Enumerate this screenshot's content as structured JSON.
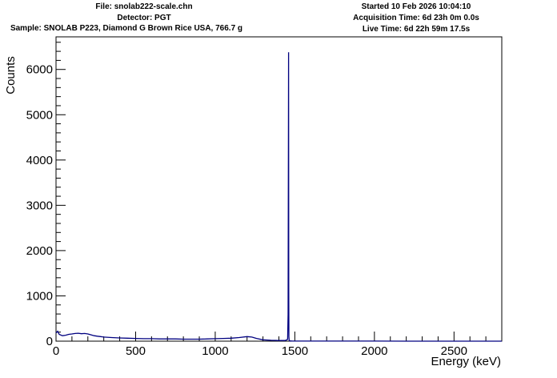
{
  "header": {
    "file": "File: snolab222-scale.chn",
    "detector": "Detector: PGT",
    "sample": "Sample: SNOLAB P223, Diamond G Brown Rice USA, 766.7 g",
    "started": "Started 10 Feb 2026 10:04:10",
    "acquisition_time": "Acquisition Time: 6d 23h 0m 0.0s",
    "live_time": "Live Time: 6d 22h 59m 17.5s"
  },
  "chart_data": {
    "type": "line",
    "title": "",
    "xlabel": "Energy (keV)",
    "ylabel": "Counts",
    "xlim": [
      0,
      2800
    ],
    "ylim": [
      0,
      6720
    ],
    "x_ticks": [
      0,
      500,
      1000,
      1500,
      2000,
      2500
    ],
    "y_ticks": [
      0,
      1000,
      2000,
      3000,
      4000,
      5000,
      6000
    ],
    "grid": false,
    "line_color": "#000080",
    "series": [
      {
        "x": [
          0,
          10,
          20,
          40,
          60,
          80,
          100,
          120,
          140,
          160,
          180,
          200,
          220,
          240,
          260,
          280,
          300,
          350,
          400,
          450,
          500,
          550,
          600,
          650,
          700,
          750,
          800,
          850,
          900,
          950,
          1000,
          1050,
          1100,
          1150,
          1200,
          1230,
          1260,
          1300,
          1350,
          1400,
          1440,
          1455,
          1458,
          1460,
          1461,
          1462,
          1463,
          1465,
          1470,
          1480,
          1500,
          1600,
          1700,
          1800,
          2000,
          2200,
          2400,
          2600,
          2800
        ],
        "y": [
          180,
          220,
          150,
          120,
          130,
          150,
          160,
          170,
          175,
          165,
          170,
          160,
          140,
          120,
          110,
          100,
          90,
          80,
          70,
          65,
          60,
          55,
          55,
          50,
          50,
          50,
          45,
          45,
          45,
          50,
          55,
          60,
          65,
          80,
          100,
          90,
          60,
          30,
          20,
          15,
          15,
          40,
          600,
          4350,
          6380,
          1200,
          100,
          10,
          5,
          3,
          2,
          2,
          1,
          1,
          1,
          0,
          0,
          0,
          0
        ]
      }
    ]
  }
}
